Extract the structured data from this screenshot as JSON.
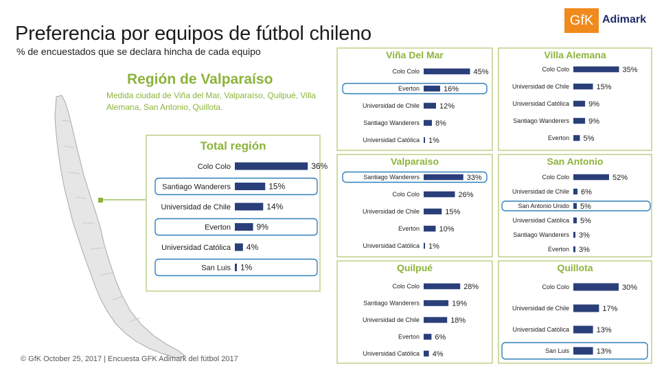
{
  "header": {
    "title": "Preferencia por equipos de fútbol chileno",
    "subtitle": "% de encuestados que se declara hincha de cada equipo"
  },
  "logo": {
    "mark": "GfK",
    "name": "Adimark",
    "color": "#f08a1c"
  },
  "region": {
    "title": "Región de Valparaíso",
    "description": "Medida ciudad de Viña del Mar, Valparaíso, Quilpué, Villa Alemana, San Antonio, Quillota."
  },
  "footer": "© GfK October 25, 2017 | Encuesta GFK Adimark del fútbol 2017",
  "colors": {
    "bar": "#2a3f7a",
    "title_green": "#8cb33a",
    "highlight": "#2e80b7",
    "frame": "#b8cc7e"
  },
  "chart_data": [
    {
      "type": "bar",
      "title": "Total región",
      "categories": [
        "Colo Colo",
        "Santiago Wanderers",
        "Universidad de Chile",
        "Everton",
        "Universidad Católica",
        "San Luis"
      ],
      "values": [
        36,
        15,
        14,
        9,
        4,
        1
      ],
      "unit": "%",
      "highlighted": [
        "Santiago Wanderers",
        "Everton",
        "San Luis"
      ]
    },
    {
      "type": "bar",
      "title": "Viña Del Mar",
      "categories": [
        "Colo Colo",
        "Everton",
        "Universidad de Chile",
        "Santiago Wanderers",
        "Universidad Católica"
      ],
      "values": [
        45,
        16,
        12,
        8,
        1
      ],
      "unit": "%",
      "highlighted": [
        "Everton"
      ]
    },
    {
      "type": "bar",
      "title": "Villa Alemana",
      "categories": [
        "Colo Colo",
        "Universidad de Chile",
        "Universidad Católica",
        "Santiago Wanderers",
        "Everton"
      ],
      "values": [
        35,
        15,
        9,
        9,
        5
      ],
      "unit": "%",
      "highlighted": []
    },
    {
      "type": "bar",
      "title": "Valparaíso",
      "categories": [
        "Santiago Wanderers",
        "Colo Colo",
        "Universidad de Chile",
        "Everton",
        "Universidad Católica"
      ],
      "values": [
        33,
        26,
        15,
        10,
        1
      ],
      "unit": "%",
      "highlighted": [
        "Santiago Wanderers"
      ]
    },
    {
      "type": "bar",
      "title": "San Antonio",
      "categories": [
        "Colo Colo",
        "Universidad de Chile",
        "San Antonio Unido",
        "Universidad Católica",
        "Santiago Wanderers",
        "Everton"
      ],
      "values": [
        52,
        6,
        5,
        5,
        3,
        3
      ],
      "unit": "%",
      "highlighted": [
        "San Antonio Unido"
      ]
    },
    {
      "type": "bar",
      "title": "Quilpué",
      "categories": [
        "Colo Colo",
        "Santiago Wanderers",
        "Universidad de Chile",
        "Everton",
        "Universidad Católica"
      ],
      "values": [
        28,
        19,
        18,
        6,
        4
      ],
      "unit": "%",
      "highlighted": []
    },
    {
      "type": "bar",
      "title": "Quillota",
      "categories": [
        "Colo Colo",
        "Universidad de Chile",
        "Universidad Católica",
        "San Luis"
      ],
      "values": [
        30,
        17,
        13,
        13
      ],
      "unit": "%",
      "highlighted": [
        "San Luis"
      ]
    }
  ]
}
